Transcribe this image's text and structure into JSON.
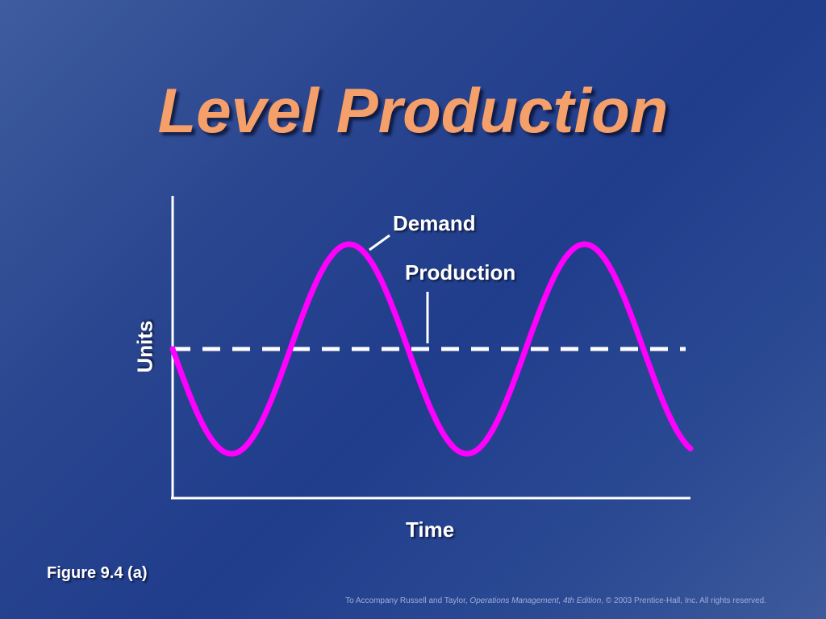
{
  "slide": {
    "title": "Level Production",
    "figure_label": "Figure 9.4 (a)",
    "footer_prefix": "To Accompany Russell and Taylor, ",
    "footer_italic": "Operations Management, 4th Edition",
    "footer_suffix": ",  © 2003 Prentice-Hall, Inc. All rights reserved."
  },
  "colors": {
    "title": "#f5a06a",
    "demand_curve": "#ff00ff",
    "production_line": "#ffffff",
    "axes": "#ffffff"
  },
  "chart_data": {
    "type": "line",
    "xlabel": "Time",
    "ylabel": "Units",
    "series": [
      {
        "name": "Demand",
        "shape": "sinusoid",
        "cycles": 2.2,
        "starts_at": "production_level",
        "first_direction": "down"
      },
      {
        "name": "Production",
        "shape": "constant",
        "level": "mid",
        "style": "dashed"
      }
    ],
    "annotations": [
      "Demand",
      "Production"
    ]
  }
}
